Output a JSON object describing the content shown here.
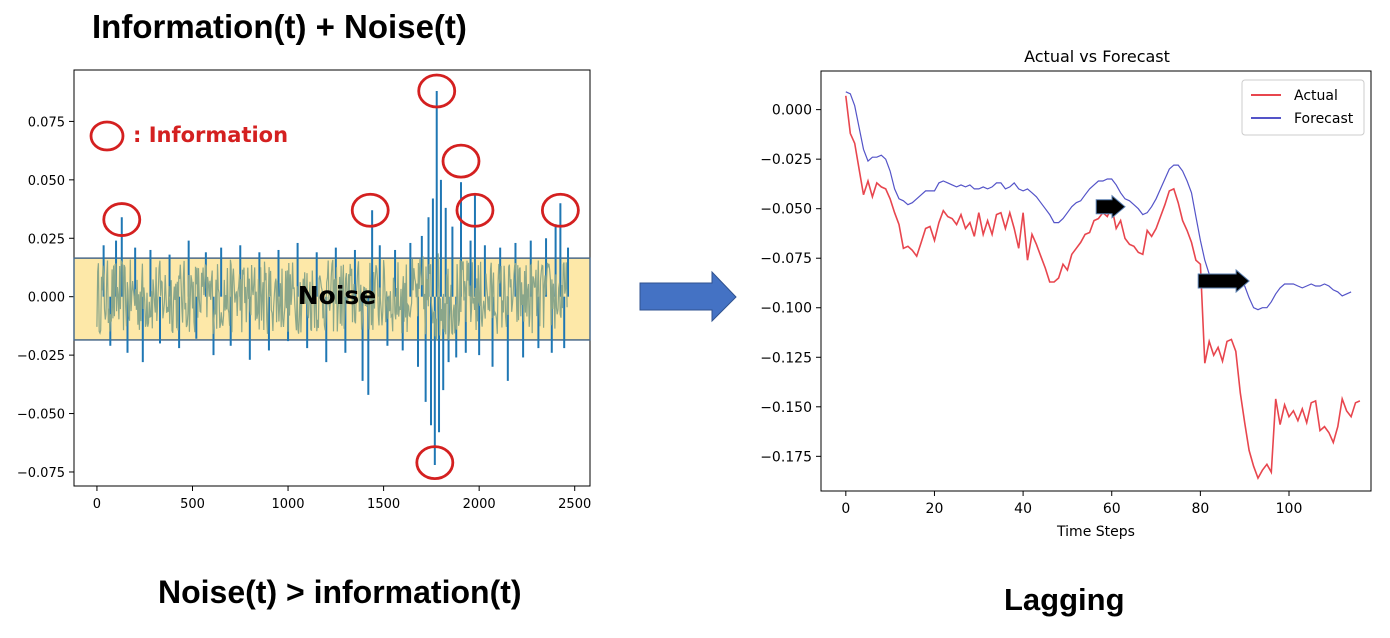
{
  "left_panel": {
    "title": "Information(t) + Noise(t)",
    "caption": "Noise(t) > information(t)",
    "legend_text": ": Information",
    "noise_label": "Noise"
  },
  "right_panel": {
    "caption": "Lagging"
  },
  "colors": {
    "information_circle": "#d42020",
    "signal": "#1f77b4",
    "noise_band": "#fde8a8",
    "noise_fill": "#8aa68a",
    "actual": "#e8464e",
    "forecast": "#5454c8",
    "flow_arrow": "#4472c4",
    "lag_arrow": "#000000"
  },
  "chart_data": [
    {
      "type": "line",
      "title": "",
      "xlabel": "",
      "ylabel": "",
      "xlim": [
        -120,
        2580
      ],
      "ylim": [
        -0.081,
        0.097
      ],
      "xticks": [
        0,
        500,
        1000,
        1500,
        2000,
        2500
      ],
      "yticks": [
        -0.075,
        -0.05,
        -0.025,
        0.0,
        0.025,
        0.05,
        0.075
      ],
      "ytick_labels": [
        "−0.075",
        "−0.050",
        "−0.025",
        "0.000",
        "0.025",
        "0.050",
        "0.075"
      ],
      "noise_band": [
        -0.0185,
        0.0165
      ],
      "spikes": [
        {
          "x": 35,
          "y": 0.022
        },
        {
          "x": 70,
          "y": -0.021
        },
        {
          "x": 100,
          "y": 0.024
        },
        {
          "x": 130,
          "y": 0.034
        },
        {
          "x": 160,
          "y": -0.024
        },
        {
          "x": 200,
          "y": 0.021
        },
        {
          "x": 240,
          "y": -0.028
        },
        {
          "x": 280,
          "y": 0.02
        },
        {
          "x": 330,
          "y": -0.02
        },
        {
          "x": 380,
          "y": 0.018
        },
        {
          "x": 430,
          "y": -0.022
        },
        {
          "x": 480,
          "y": 0.024
        },
        {
          "x": 520,
          "y": -0.018
        },
        {
          "x": 570,
          "y": 0.019
        },
        {
          "x": 610,
          "y": -0.025
        },
        {
          "x": 650,
          "y": 0.021
        },
        {
          "x": 700,
          "y": -0.021
        },
        {
          "x": 750,
          "y": 0.022
        },
        {
          "x": 800,
          "y": -0.027
        },
        {
          "x": 850,
          "y": 0.019
        },
        {
          "x": 900,
          "y": -0.023
        },
        {
          "x": 950,
          "y": 0.02
        },
        {
          "x": 1000,
          "y": -0.019
        },
        {
          "x": 1050,
          "y": 0.023
        },
        {
          "x": 1100,
          "y": -0.022
        },
        {
          "x": 1150,
          "y": 0.019
        },
        {
          "x": 1200,
          "y": -0.028
        },
        {
          "x": 1250,
          "y": 0.021
        },
        {
          "x": 1300,
          "y": -0.024
        },
        {
          "x": 1350,
          "y": 0.02
        },
        {
          "x": 1390,
          "y": -0.036
        },
        {
          "x": 1420,
          "y": -0.042
        },
        {
          "x": 1440,
          "y": 0.037
        },
        {
          "x": 1480,
          "y": 0.022
        },
        {
          "x": 1520,
          "y": -0.021
        },
        {
          "x": 1560,
          "y": 0.02
        },
        {
          "x": 1600,
          "y": -0.023
        },
        {
          "x": 1640,
          "y": 0.023
        },
        {
          "x": 1680,
          "y": -0.03
        },
        {
          "x": 1700,
          "y": 0.026
        },
        {
          "x": 1720,
          "y": -0.045
        },
        {
          "x": 1735,
          "y": 0.034
        },
        {
          "x": 1748,
          "y": -0.055
        },
        {
          "x": 1758,
          "y": 0.042
        },
        {
          "x": 1768,
          "y": -0.072
        },
        {
          "x": 1778,
          "y": 0.088
        },
        {
          "x": 1790,
          "y": -0.058
        },
        {
          "x": 1800,
          "y": 0.05
        },
        {
          "x": 1812,
          "y": -0.04
        },
        {
          "x": 1825,
          "y": 0.038
        },
        {
          "x": 1840,
          "y": -0.028
        },
        {
          "x": 1860,
          "y": 0.03
        },
        {
          "x": 1880,
          "y": -0.026
        },
        {
          "x": 1905,
          "y": 0.049
        },
        {
          "x": 1930,
          "y": -0.024
        },
        {
          "x": 1955,
          "y": 0.024
        },
        {
          "x": 1978,
          "y": 0.044
        },
        {
          "x": 2000,
          "y": -0.025
        },
        {
          "x": 2030,
          "y": 0.022
        },
        {
          "x": 2070,
          "y": -0.03
        },
        {
          "x": 2110,
          "y": 0.021
        },
        {
          "x": 2150,
          "y": -0.036
        },
        {
          "x": 2190,
          "y": 0.023
        },
        {
          "x": 2230,
          "y": -0.026
        },
        {
          "x": 2270,
          "y": 0.024
        },
        {
          "x": 2310,
          "y": -0.022
        },
        {
          "x": 2350,
          "y": 0.025
        },
        {
          "x": 2380,
          "y": -0.024
        },
        {
          "x": 2400,
          "y": 0.031
        },
        {
          "x": 2425,
          "y": 0.04
        },
        {
          "x": 2445,
          "y": -0.022
        },
        {
          "x": 2465,
          "y": 0.021
        }
      ],
      "information_points": [
        {
          "x": 130,
          "y": 0.033
        },
        {
          "x": 1430,
          "y": 0.037
        },
        {
          "x": 1778,
          "y": 0.088
        },
        {
          "x": 1905,
          "y": 0.058
        },
        {
          "x": 1978,
          "y": 0.037
        },
        {
          "x": 2425,
          "y": 0.037
        },
        {
          "x": 1768,
          "y": -0.071
        }
      ]
    },
    {
      "type": "line",
      "title": "Actual vs Forecast",
      "xlabel": "Time Steps",
      "ylabel": "",
      "xlim": [
        -5.6,
        118.5
      ],
      "ylim": [
        -0.1925,
        0.0195
      ],
      "xticks": [
        0,
        20,
        40,
        60,
        80,
        100
      ],
      "yticks": [
        0.0,
        -0.025,
        -0.05,
        -0.075,
        -0.1,
        -0.125,
        -0.15,
        -0.175
      ],
      "ytick_labels": [
        "0.000",
        "−0.025",
        "−0.050",
        "−0.075",
        "−0.100",
        "−0.125",
        "−0.150",
        "−0.175"
      ],
      "legend_position": "top-right",
      "series": [
        {
          "name": "Actual",
          "values": [
            0.007,
            -0.012,
            -0.017,
            -0.03,
            -0.043,
            -0.036,
            -0.044,
            -0.037,
            -0.039,
            -0.04,
            -0.045,
            -0.052,
            -0.058,
            -0.07,
            -0.069,
            -0.071,
            -0.074,
            -0.067,
            -0.06,
            -0.059,
            -0.066,
            -0.057,
            -0.051,
            -0.054,
            -0.055,
            -0.058,
            -0.053,
            -0.06,
            -0.057,
            -0.064,
            -0.052,
            -0.063,
            -0.056,
            -0.063,
            -0.053,
            -0.052,
            -0.06,
            -0.052,
            -0.06,
            -0.07,
            -0.052,
            -0.076,
            -0.063,
            -0.068,
            -0.074,
            -0.08,
            -0.087,
            -0.087,
            -0.085,
            -0.078,
            -0.081,
            -0.073,
            -0.07,
            -0.067,
            -0.063,
            -0.062,
            -0.056,
            -0.055,
            -0.052,
            -0.054,
            -0.049,
            -0.06,
            -0.056,
            -0.065,
            -0.068,
            -0.069,
            -0.072,
            -0.073,
            -0.061,
            -0.064,
            -0.06,
            -0.054,
            -0.048,
            -0.041,
            -0.04,
            -0.047,
            -0.056,
            -0.061,
            -0.067,
            -0.076,
            -0.078,
            -0.128,
            -0.117,
            -0.124,
            -0.12,
            -0.127,
            -0.117,
            -0.116,
            -0.122,
            -0.143,
            -0.158,
            -0.172,
            -0.18,
            -0.186,
            -0.182,
            -0.179,
            -0.183,
            -0.146,
            -0.159,
            -0.149,
            -0.155,
            -0.152,
            -0.157,
            -0.151,
            -0.158,
            -0.148,
            -0.147,
            -0.162,
            -0.16,
            -0.163,
            -0.168,
            -0.16,
            -0.146,
            -0.152,
            -0.155,
            -0.148,
            -0.147
          ]
        },
        {
          "name": "Forecast",
          "values": [
            0.009,
            0.008,
            0.002,
            -0.009,
            -0.02,
            -0.026,
            -0.024,
            -0.024,
            -0.023,
            -0.025,
            -0.031,
            -0.04,
            -0.045,
            -0.046,
            -0.048,
            -0.047,
            -0.045,
            -0.043,
            -0.041,
            -0.041,
            -0.041,
            -0.037,
            -0.036,
            -0.037,
            -0.038,
            -0.039,
            -0.038,
            -0.039,
            -0.038,
            -0.04,
            -0.04,
            -0.039,
            -0.04,
            -0.039,
            -0.037,
            -0.037,
            -0.04,
            -0.039,
            -0.037,
            -0.04,
            -0.041,
            -0.04,
            -0.042,
            -0.044,
            -0.047,
            -0.05,
            -0.053,
            -0.057,
            -0.057,
            -0.055,
            -0.052,
            -0.049,
            -0.047,
            -0.046,
            -0.043,
            -0.04,
            -0.038,
            -0.036,
            -0.036,
            -0.035,
            -0.035,
            -0.038,
            -0.042,
            -0.045,
            -0.046,
            -0.048,
            -0.05,
            -0.053,
            -0.052,
            -0.049,
            -0.045,
            -0.04,
            -0.035,
            -0.03,
            -0.028,
            -0.028,
            -0.031,
            -0.036,
            -0.042,
            -0.054,
            -0.066,
            -0.076,
            -0.083,
            -0.088,
            -0.089,
            -0.088,
            -0.086,
            -0.086,
            -0.086,
            -0.087,
            -0.089,
            -0.095,
            -0.1,
            -0.101,
            -0.1,
            -0.1,
            -0.097,
            -0.093,
            -0.09,
            -0.088,
            -0.088,
            -0.088,
            -0.089,
            -0.09,
            -0.089,
            -0.088,
            -0.089,
            -0.089,
            -0.088,
            -0.089,
            -0.091,
            -0.092,
            -0.094,
            -0.093,
            -0.092
          ]
        }
      ],
      "lag_arrows": [
        {
          "from": {
            "x": 56.5,
            "y": -0.049
          },
          "to": {
            "x": 63,
            "y": -0.049
          }
        },
        {
          "from": {
            "x": 79.5,
            "y": -0.0865
          },
          "to": {
            "x": 91,
            "y": -0.0865
          }
        }
      ]
    }
  ]
}
